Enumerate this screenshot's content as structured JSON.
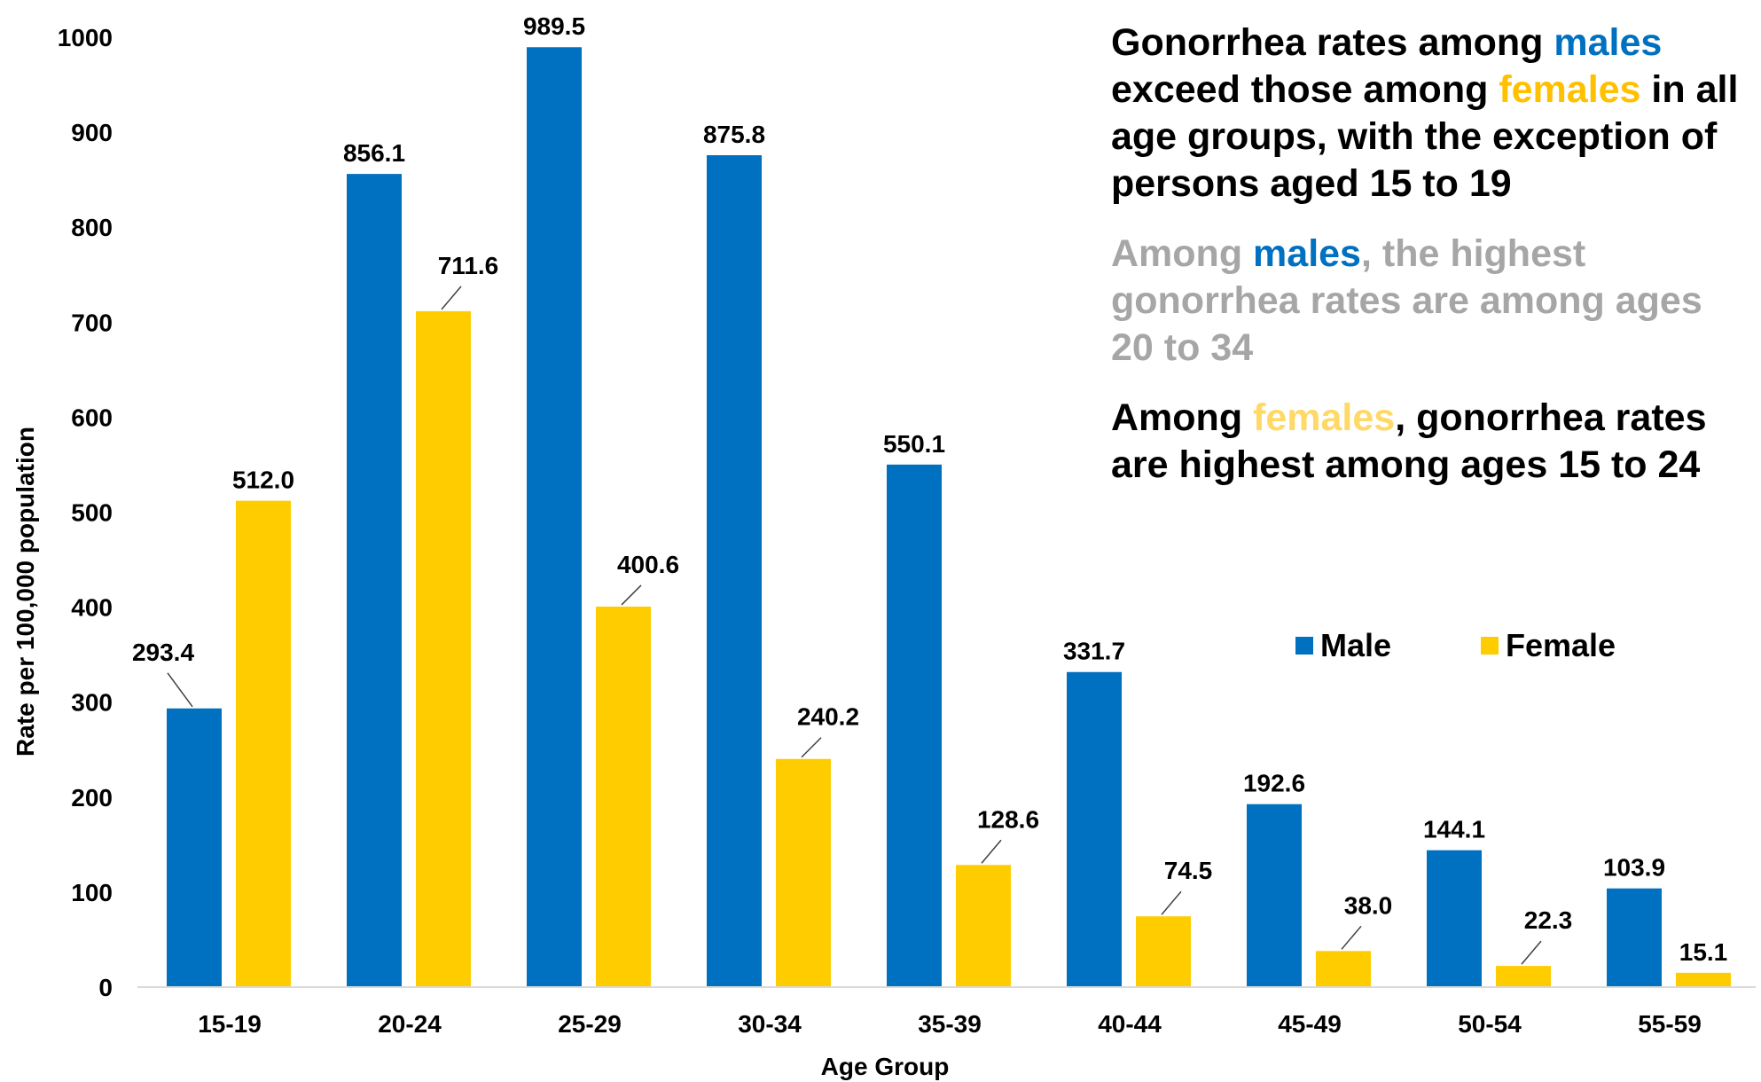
{
  "colors": {
    "male": "#0070c0",
    "female": "#ffcc00",
    "female_text": "#ffc000",
    "female_text_light": "#ffd966",
    "grey_text": "#a6a6a6",
    "axis": "#d9d9d9",
    "leader": "#404040"
  },
  "notes": [
    {
      "color": "black",
      "parts": [
        {
          "text": "Gonorrhea rates among ",
          "style": "black"
        },
        {
          "text": "males",
          "style": "male"
        },
        {
          "text": " exceed those among ",
          "style": "black"
        },
        {
          "text": "females",
          "style": "female"
        },
        {
          "text": " in all age groups, with the exception of persons aged 15 to 19",
          "style": "black"
        }
      ]
    },
    {
      "color": "grey",
      "parts": [
        {
          "text": "Among ",
          "style": "grey"
        },
        {
          "text": "males",
          "style": "male"
        },
        {
          "text": ", the highest gonorrhea rates are among ages 20 to 34",
          "style": "grey"
        }
      ]
    },
    {
      "color": "black",
      "parts": [
        {
          "text": "Among ",
          "style": "black"
        },
        {
          "text": "females",
          "style": "female-light"
        },
        {
          "text": ", gonorrhea rates are highest among ages 15 to 24",
          "style": "black"
        }
      ]
    }
  ],
  "chart_data": {
    "type": "bar",
    "title": "",
    "xlabel": "Age Group",
    "ylabel": "Rate per 100,000 population",
    "ylim": [
      0,
      1000
    ],
    "yticks": [
      "0",
      "100",
      "200",
      "300",
      "400",
      "500",
      "600",
      "700",
      "800",
      "900",
      "1000"
    ],
    "categories": [
      "15-19",
      "20-24",
      "25-29",
      "30-34",
      "35-39",
      "40-44",
      "45-49",
      "50-54",
      "55-59"
    ],
    "series": [
      {
        "name": "Male",
        "values": [
          293.4,
          856.1,
          989.5,
          875.8,
          550.1,
          331.7,
          192.6,
          144.1,
          103.9
        ],
        "labels": [
          "293.4",
          "856.1",
          "989.5",
          "875.8",
          "550.1",
          "331.7",
          "192.6",
          "144.1",
          "103.9"
        ]
      },
      {
        "name": "Female",
        "values": [
          512.0,
          711.6,
          400.6,
          240.2,
          128.6,
          74.5,
          38.0,
          22.3,
          15.1
        ],
        "labels": [
          "512.0",
          "711.6",
          "400.6",
          "240.2",
          "128.6",
          "74.5",
          "38.0",
          "22.3",
          "15.1"
        ]
      }
    ],
    "legend": {
      "position": "right",
      "items": [
        "Male",
        "Female"
      ]
    },
    "grid": false
  }
}
